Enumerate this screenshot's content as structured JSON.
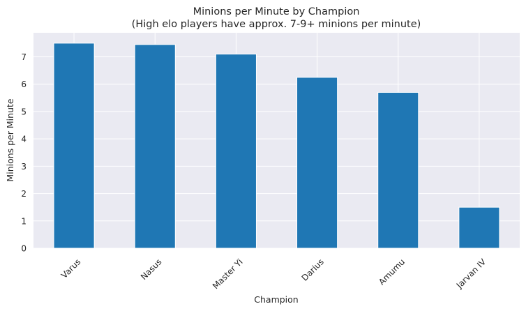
{
  "chart_data": {
    "type": "bar",
    "title": "Minions per Minute by Champion",
    "subtitle": "(High elo players have approx. 7-9+ minions per minute)",
    "xlabel": "Champion",
    "ylabel": "Minions per Minute",
    "categories": [
      "Varus",
      "Nasus",
      "Master Yi",
      "Darius",
      "Amumu",
      "Jarvan IV"
    ],
    "values": [
      7.5,
      7.45,
      7.1,
      6.25,
      5.7,
      1.5
    ],
    "ylim": [
      0,
      7.88
    ],
    "yticks": [
      "0",
      "1",
      "2",
      "3",
      "4",
      "5",
      "6",
      "7"
    ],
    "grid": true,
    "legend": "none",
    "colors": {
      "bar": "#1f77b4",
      "plot_background": "#eaeaf2",
      "grid": "#ffffff"
    }
  }
}
